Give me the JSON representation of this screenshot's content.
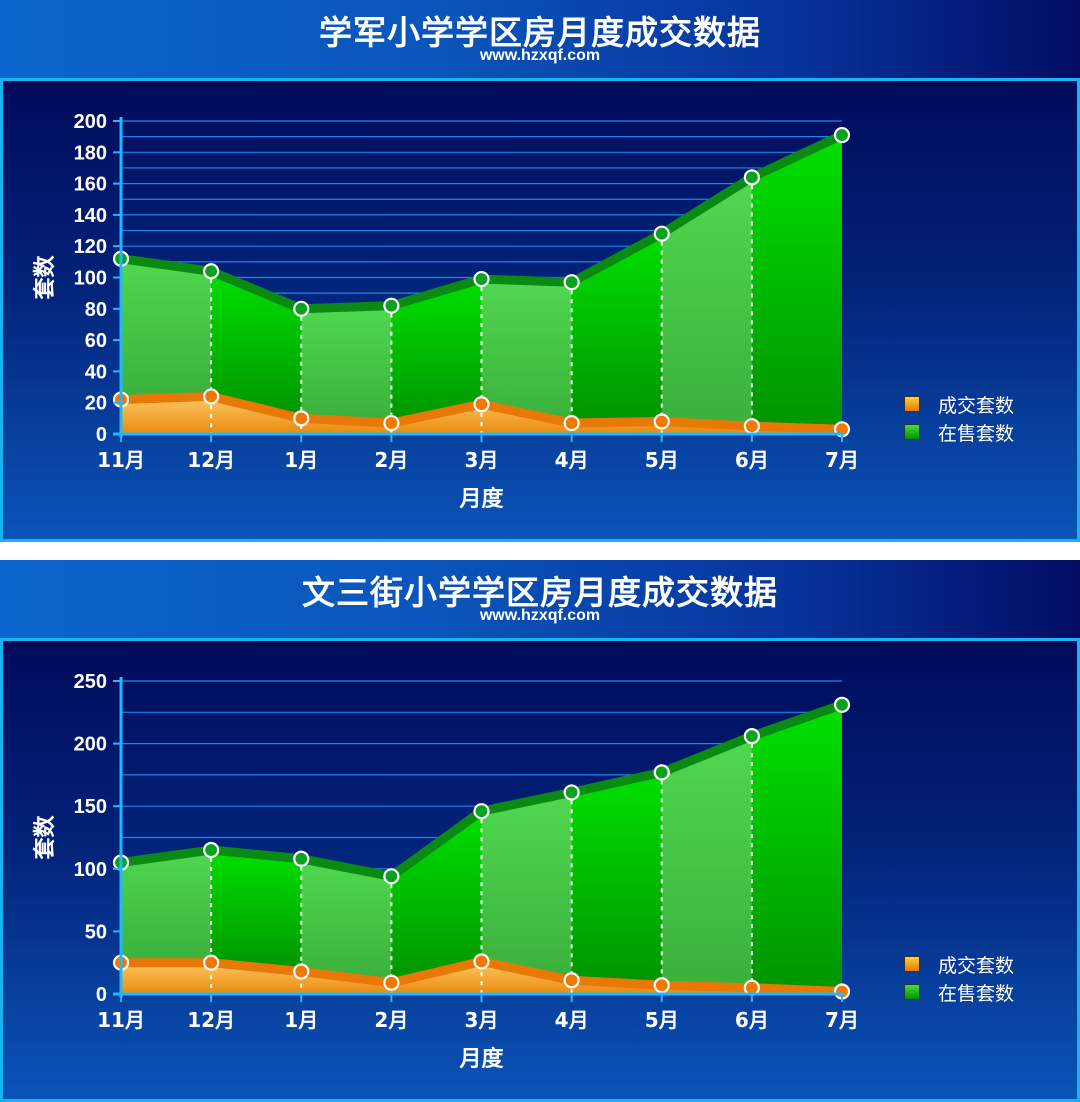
{
  "legend": [
    {
      "label": "成交套数",
      "color": "#f08c00"
    },
    {
      "label": "在售套数",
      "color": "#00b400"
    }
  ],
  "chart_data": [
    {
      "type": "area",
      "title": "学军小学学区房月度成交数据",
      "subtitle": "www.hzxqf.com",
      "xlabel": "月度",
      "ylabel": "套数",
      "ylim": [
        0,
        200
      ],
      "yticks": [
        0,
        20,
        40,
        60,
        80,
        100,
        120,
        140,
        160,
        180,
        200
      ],
      "categories": [
        "11月",
        "12月",
        "1月",
        "2月",
        "3月",
        "4月",
        "5月",
        "6月",
        "7月"
      ],
      "series": [
        {
          "name": "成交套数",
          "values": [
            22,
            24,
            10,
            7,
            19,
            7,
            8,
            5,
            3
          ]
        },
        {
          "name": "在售套数",
          "values": [
            112,
            104,
            80,
            82,
            99,
            97,
            128,
            164,
            191
          ]
        }
      ],
      "grid": true,
      "legend_position": "right"
    },
    {
      "type": "area",
      "title": "文三街小学学区房月度成交数据",
      "subtitle": "www.hzxqf.com",
      "xlabel": "月度",
      "ylabel": "套数",
      "ylim": [
        0,
        250
      ],
      "yticks": [
        0,
        50,
        100,
        150,
        200,
        250
      ],
      "categories": [
        "11月",
        "12月",
        "1月",
        "2月",
        "3月",
        "4月",
        "5月",
        "6月",
        "7月"
      ],
      "series": [
        {
          "name": "成交套数",
          "values": [
            25,
            25,
            18,
            9,
            26,
            11,
            7,
            5,
            2
          ]
        },
        {
          "name": "在售套数",
          "values": [
            105,
            115,
            108,
            94,
            146,
            161,
            177,
            206,
            231
          ]
        }
      ],
      "grid": true,
      "legend_position": "right"
    }
  ]
}
